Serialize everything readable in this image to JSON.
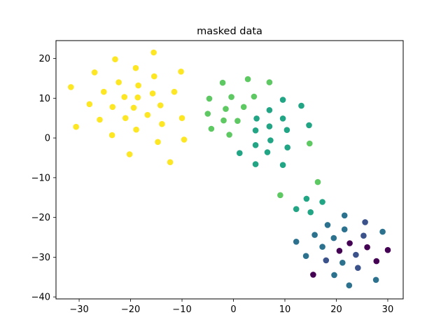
{
  "chart_data": {
    "type": "scatter",
    "title": "masked data",
    "xlabel": "",
    "ylabel": "",
    "xlim": [
      -34.5,
      33
    ],
    "ylim": [
      -40.5,
      24.5
    ],
    "xticks": [
      -30,
      -20,
      -10,
      0,
      10,
      20,
      30
    ],
    "yticks": [
      -40,
      -30,
      -20,
      -10,
      0,
      10,
      20
    ],
    "grid": false,
    "colors": {
      "yellow": "#fde725",
      "lightgreen": "#5ec962",
      "green": "#21a585",
      "teal": "#2c728e",
      "indigo": "#3b528b",
      "purple": "#440154"
    },
    "points": [
      {
        "x": -23.0,
        "y": 19.8,
        "c": "yellow"
      },
      {
        "x": -15.5,
        "y": 21.5,
        "c": "yellow"
      },
      {
        "x": -27.0,
        "y": 16.5,
        "c": "yellow"
      },
      {
        "x": -19.0,
        "y": 17.6,
        "c": "yellow"
      },
      {
        "x": -15.4,
        "y": 15.5,
        "c": "yellow"
      },
      {
        "x": -10.2,
        "y": 16.7,
        "c": "yellow"
      },
      {
        "x": -22.3,
        "y": 14.0,
        "c": "yellow"
      },
      {
        "x": -18.5,
        "y": 13.2,
        "c": "yellow"
      },
      {
        "x": -31.6,
        "y": 12.8,
        "c": "yellow"
      },
      {
        "x": -25.2,
        "y": 11.6,
        "c": "yellow"
      },
      {
        "x": -15.7,
        "y": 11.2,
        "c": "yellow"
      },
      {
        "x": -11.5,
        "y": 11.6,
        "c": "yellow"
      },
      {
        "x": -21.2,
        "y": 10.3,
        "c": "yellow"
      },
      {
        "x": -18.6,
        "y": 10.2,
        "c": "yellow"
      },
      {
        "x": -28.0,
        "y": 8.5,
        "c": "yellow"
      },
      {
        "x": -23.5,
        "y": 7.8,
        "c": "yellow"
      },
      {
        "x": -19.4,
        "y": 7.6,
        "c": "yellow"
      },
      {
        "x": -14.2,
        "y": 8.2,
        "c": "yellow"
      },
      {
        "x": -16.7,
        "y": 5.8,
        "c": "yellow"
      },
      {
        "x": -26.0,
        "y": 4.6,
        "c": "yellow"
      },
      {
        "x": -21.0,
        "y": 5.0,
        "c": "yellow"
      },
      {
        "x": -10.0,
        "y": 5.0,
        "c": "yellow"
      },
      {
        "x": -30.6,
        "y": 2.8,
        "c": "yellow"
      },
      {
        "x": -18.9,
        "y": 2.1,
        "c": "yellow"
      },
      {
        "x": -13.9,
        "y": 3.5,
        "c": "yellow"
      },
      {
        "x": -23.6,
        "y": 0.7,
        "c": "yellow"
      },
      {
        "x": -14.7,
        "y": -1.0,
        "c": "yellow"
      },
      {
        "x": -9.6,
        "y": -0.4,
        "c": "yellow"
      },
      {
        "x": -20.2,
        "y": -4.1,
        "c": "yellow"
      },
      {
        "x": -12.3,
        "y": -6.1,
        "c": "yellow"
      },
      {
        "x": -2.1,
        "y": 13.9,
        "c": "lightgreen"
      },
      {
        "x": 2.8,
        "y": 14.8,
        "c": "lightgreen"
      },
      {
        "x": 7.0,
        "y": 14.0,
        "c": "lightgreen"
      },
      {
        "x": -4.7,
        "y": 9.9,
        "c": "lightgreen"
      },
      {
        "x": -0.4,
        "y": 10.3,
        "c": "lightgreen"
      },
      {
        "x": 4.0,
        "y": 10.4,
        "c": "lightgreen"
      },
      {
        "x": -1.5,
        "y": 7.3,
        "c": "lightgreen"
      },
      {
        "x": 2.0,
        "y": 7.8,
        "c": "lightgreen"
      },
      {
        "x": -5.0,
        "y": 6.1,
        "c": "lightgreen"
      },
      {
        "x": -1.9,
        "y": 4.4,
        "c": "lightgreen"
      },
      {
        "x": 0.8,
        "y": 4.3,
        "c": "lightgreen"
      },
      {
        "x": -4.3,
        "y": 2.3,
        "c": "lightgreen"
      },
      {
        "x": -0.8,
        "y": 0.8,
        "c": "lightgreen"
      },
      {
        "x": 14.8,
        "y": -1.4,
        "c": "lightgreen"
      },
      {
        "x": 16.4,
        "y": -11.1,
        "c": "lightgreen"
      },
      {
        "x": 9.1,
        "y": -14.4,
        "c": "lightgreen"
      },
      {
        "x": 9.6,
        "y": 9.6,
        "c": "green"
      },
      {
        "x": 13.2,
        "y": 8.1,
        "c": "green"
      },
      {
        "x": 7.0,
        "y": 7.0,
        "c": "green"
      },
      {
        "x": 4.5,
        "y": 4.9,
        "c": "green"
      },
      {
        "x": 9.6,
        "y": 4.9,
        "c": "green"
      },
      {
        "x": 7.0,
        "y": 2.9,
        "c": "green"
      },
      {
        "x": 14.7,
        "y": 3.2,
        "c": "green"
      },
      {
        "x": 4.3,
        "y": 1.9,
        "c": "green"
      },
      {
        "x": 10.4,
        "y": 2.0,
        "c": "green"
      },
      {
        "x": 7.2,
        "y": -0.6,
        "c": "green"
      },
      {
        "x": 4.3,
        "y": -1.8,
        "c": "green"
      },
      {
        "x": 10.5,
        "y": -2.4,
        "c": "green"
      },
      {
        "x": 1.2,
        "y": -3.8,
        "c": "green"
      },
      {
        "x": 6.6,
        "y": -3.6,
        "c": "green"
      },
      {
        "x": 4.3,
        "y": -6.6,
        "c": "green"
      },
      {
        "x": 9.6,
        "y": -6.8,
        "c": "green"
      },
      {
        "x": 14.2,
        "y": -15.3,
        "c": "green"
      },
      {
        "x": 17.3,
        "y": -16.1,
        "c": "green"
      },
      {
        "x": 12.2,
        "y": -17.9,
        "c": "green"
      },
      {
        "x": 15.0,
        "y": -18.7,
        "c": "green"
      },
      {
        "x": 21.6,
        "y": -19.5,
        "c": "teal"
      },
      {
        "x": 18.3,
        "y": -21.9,
        "c": "teal"
      },
      {
        "x": 21.6,
        "y": -23.0,
        "c": "teal"
      },
      {
        "x": 15.8,
        "y": -24.4,
        "c": "teal"
      },
      {
        "x": 19.5,
        "y": -25.2,
        "c": "teal"
      },
      {
        "x": 29.0,
        "y": -23.6,
        "c": "teal"
      },
      {
        "x": 12.2,
        "y": -26.1,
        "c": "teal"
      },
      {
        "x": 17.3,
        "y": -27.4,
        "c": "teal"
      },
      {
        "x": 14.1,
        "y": -29.7,
        "c": "teal"
      },
      {
        "x": 21.2,
        "y": -31.4,
        "c": "teal"
      },
      {
        "x": 19.6,
        "y": -34.5,
        "c": "teal"
      },
      {
        "x": 27.7,
        "y": -35.7,
        "c": "teal"
      },
      {
        "x": 22.5,
        "y": -37.1,
        "c": "teal"
      },
      {
        "x": 25.6,
        "y": -21.2,
        "c": "indigo"
      },
      {
        "x": 25.3,
        "y": -24.6,
        "c": "indigo"
      },
      {
        "x": 23.8,
        "y": -29.4,
        "c": "indigo"
      },
      {
        "x": 18.0,
        "y": -30.8,
        "c": "indigo"
      },
      {
        "x": 24.2,
        "y": -32.7,
        "c": "indigo"
      },
      {
        "x": 22.6,
        "y": -26.5,
        "c": "purple"
      },
      {
        "x": 20.6,
        "y": -28.4,
        "c": "purple"
      },
      {
        "x": 26.0,
        "y": -27.5,
        "c": "purple"
      },
      {
        "x": 30.0,
        "y": -28.2,
        "c": "purple"
      },
      {
        "x": 27.8,
        "y": -31.0,
        "c": "purple"
      },
      {
        "x": 15.5,
        "y": -34.4,
        "c": "purple"
      }
    ]
  }
}
